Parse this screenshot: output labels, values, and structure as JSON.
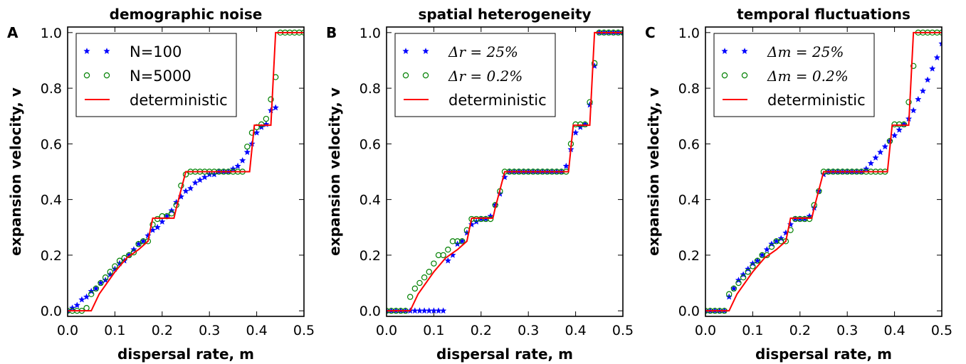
{
  "chart_data": [
    {
      "type": "scatter",
      "panel_letter": "A",
      "title": "demographic noise",
      "xlabel": "dispersal rate, m",
      "ylabel": "expansion velocity, v",
      "xlim": [
        0.0,
        0.5
      ],
      "ylim": [
        -0.02,
        1.02
      ],
      "xticks": [
        "0.0",
        "0.1",
        "0.2",
        "0.3",
        "0.4",
        "0.5"
      ],
      "yticks": [
        "0.0",
        "0.2",
        "0.4",
        "0.6",
        "0.8",
        "1.0"
      ],
      "legend_position": "top-left",
      "colors": {
        "stars": "#0000ff",
        "circles": "#008000",
        "line": "#ff0000"
      },
      "series": [
        {
          "name": "N=100",
          "marker": "star",
          "x": [
            0.0,
            0.01,
            0.02,
            0.03,
            0.04,
            0.05,
            0.06,
            0.07,
            0.08,
            0.09,
            0.1,
            0.11,
            0.12,
            0.13,
            0.14,
            0.15,
            0.16,
            0.17,
            0.18,
            0.19,
            0.2,
            0.21,
            0.22,
            0.23,
            0.24,
            0.25,
            0.26,
            0.27,
            0.28,
            0.29,
            0.3,
            0.31,
            0.32,
            0.33,
            0.34,
            0.35,
            0.36,
            0.37,
            0.38,
            0.39,
            0.4,
            0.41,
            0.42,
            0.43,
            0.44
          ],
          "y": [
            0.0,
            0.01,
            0.02,
            0.04,
            0.05,
            0.07,
            0.08,
            0.1,
            0.11,
            0.13,
            0.15,
            0.17,
            0.18,
            0.2,
            0.22,
            0.24,
            0.25,
            0.27,
            0.29,
            0.3,
            0.32,
            0.34,
            0.36,
            0.39,
            0.41,
            0.43,
            0.44,
            0.46,
            0.47,
            0.48,
            0.49,
            0.49,
            0.5,
            0.5,
            0.5,
            0.51,
            0.52,
            0.54,
            0.57,
            0.6,
            0.64,
            0.66,
            0.67,
            0.72,
            0.73
          ]
        },
        {
          "name": "N=5000",
          "marker": "circle",
          "x": [
            0.0,
            0.01,
            0.02,
            0.03,
            0.04,
            0.05,
            0.06,
            0.07,
            0.08,
            0.09,
            0.1,
            0.11,
            0.12,
            0.13,
            0.14,
            0.15,
            0.16,
            0.17,
            0.18,
            0.19,
            0.2,
            0.21,
            0.22,
            0.23,
            0.24,
            0.25,
            0.26,
            0.27,
            0.28,
            0.29,
            0.3,
            0.31,
            0.32,
            0.33,
            0.34,
            0.35,
            0.36,
            0.37,
            0.38,
            0.39,
            0.4,
            0.41,
            0.42,
            0.43,
            0.44,
            0.45,
            0.46,
            0.47,
            0.48,
            0.49,
            0.5
          ],
          "y": [
            0.0,
            0.0,
            0.0,
            0.0,
            0.01,
            0.06,
            0.08,
            0.1,
            0.12,
            0.14,
            0.16,
            0.18,
            0.19,
            0.2,
            0.21,
            0.24,
            0.25,
            0.25,
            0.31,
            0.33,
            0.34,
            0.34,
            0.35,
            0.38,
            0.45,
            0.49,
            0.5,
            0.5,
            0.5,
            0.5,
            0.5,
            0.5,
            0.5,
            0.5,
            0.5,
            0.5,
            0.5,
            0.5,
            0.59,
            0.64,
            0.66,
            0.67,
            0.69,
            0.76,
            0.84,
            1.0,
            1.0,
            1.0,
            1.0,
            1.0,
            1.0
          ]
        },
        {
          "name": "deterministic",
          "marker": "line",
          "x": [
            0.0,
            0.05,
            0.0667,
            0.1,
            0.125,
            0.15,
            0.17,
            0.18,
            0.225,
            0.23,
            0.25,
            0.385,
            0.395,
            0.43,
            0.44,
            0.5
          ],
          "y": [
            0.0,
            0.0,
            0.06,
            0.14,
            0.19,
            0.22,
            0.25,
            0.333,
            0.333,
            0.37,
            0.5,
            0.5,
            0.667,
            0.667,
            1.0,
            1.0
          ]
        }
      ]
    },
    {
      "type": "scatter",
      "panel_letter": "B",
      "title": "spatial heterogeneity",
      "xlabel": "dispersal rate, m",
      "ylabel": "expansion velocity, v",
      "xlim": [
        0.0,
        0.5
      ],
      "ylim": [
        -0.02,
        1.02
      ],
      "xticks": [
        "0.0",
        "0.1",
        "0.2",
        "0.3",
        "0.4",
        "0.5"
      ],
      "yticks": [
        "0.0",
        "0.2",
        "0.4",
        "0.6",
        "0.8",
        "1.0"
      ],
      "legend_position": "top-left",
      "colors": {
        "stars": "#0000ff",
        "circles": "#008000",
        "line": "#ff0000"
      },
      "series": [
        {
          "name": "Δr = 25%",
          "marker": "star",
          "x": [
            0.0,
            0.01,
            0.02,
            0.03,
            0.04,
            0.05,
            0.06,
            0.07,
            0.08,
            0.09,
            0.1,
            0.11,
            0.12,
            0.13,
            0.14,
            0.15,
            0.16,
            0.17,
            0.18,
            0.19,
            0.2,
            0.21,
            0.22,
            0.23,
            0.24,
            0.25,
            0.26,
            0.27,
            0.28,
            0.29,
            0.3,
            0.31,
            0.32,
            0.33,
            0.34,
            0.35,
            0.36,
            0.37,
            0.38,
            0.39,
            0.4,
            0.41,
            0.42,
            0.43,
            0.44,
            0.45,
            0.46,
            0.47,
            0.48,
            0.49,
            0.5
          ],
          "y": [
            0.0,
            0.0,
            0.0,
            0.0,
            0.0,
            0.0,
            0.0,
            0.0,
            0.0,
            0.0,
            0.0,
            0.0,
            0.0,
            0.18,
            0.2,
            0.24,
            0.25,
            0.28,
            0.31,
            0.32,
            0.33,
            0.33,
            0.34,
            0.38,
            0.42,
            0.48,
            0.5,
            0.5,
            0.5,
            0.5,
            0.5,
            0.5,
            0.5,
            0.5,
            0.5,
            0.5,
            0.5,
            0.5,
            0.52,
            0.58,
            0.64,
            0.66,
            0.67,
            0.74,
            0.88,
            1.0,
            1.0,
            1.0,
            1.0,
            1.0,
            1.0
          ]
        },
        {
          "name": "Δr = 0.2%",
          "marker": "circle",
          "x": [
            0.0,
            0.01,
            0.02,
            0.03,
            0.04,
            0.05,
            0.06,
            0.07,
            0.08,
            0.09,
            0.1,
            0.11,
            0.12,
            0.13,
            0.14,
            0.15,
            0.16,
            0.17,
            0.18,
            0.19,
            0.2,
            0.21,
            0.22,
            0.23,
            0.24,
            0.25,
            0.26,
            0.27,
            0.28,
            0.29,
            0.3,
            0.31,
            0.32,
            0.33,
            0.34,
            0.35,
            0.36,
            0.37,
            0.38,
            0.39,
            0.4,
            0.41,
            0.42,
            0.43,
            0.44,
            0.45,
            0.46,
            0.47,
            0.48,
            0.49,
            0.5
          ],
          "y": [
            0.0,
            0.0,
            0.0,
            0.0,
            0.0,
            0.05,
            0.08,
            0.1,
            0.12,
            0.14,
            0.17,
            0.2,
            0.2,
            0.22,
            0.25,
            0.25,
            0.25,
            0.29,
            0.33,
            0.33,
            0.33,
            0.33,
            0.33,
            0.38,
            0.43,
            0.5,
            0.5,
            0.5,
            0.5,
            0.5,
            0.5,
            0.5,
            0.5,
            0.5,
            0.5,
            0.5,
            0.5,
            0.5,
            0.5,
            0.6,
            0.67,
            0.67,
            0.67,
            0.75,
            0.89,
            1.0,
            1.0,
            1.0,
            1.0,
            1.0,
            1.0
          ]
        },
        {
          "name": "deterministic",
          "marker": "line",
          "x": [
            0.0,
            0.05,
            0.0667,
            0.1,
            0.125,
            0.15,
            0.17,
            0.18,
            0.225,
            0.23,
            0.25,
            0.385,
            0.395,
            0.43,
            0.44,
            0.5
          ],
          "y": [
            0.0,
            0.0,
            0.06,
            0.14,
            0.19,
            0.22,
            0.25,
            0.333,
            0.333,
            0.37,
            0.5,
            0.5,
            0.667,
            0.667,
            1.0,
            1.0
          ]
        }
      ]
    },
    {
      "type": "scatter",
      "panel_letter": "C",
      "title": "temporal fluctuations",
      "xlabel": "dispersal rate, m",
      "ylabel": "expansion velocity, v",
      "xlim": [
        0.0,
        0.5
      ],
      "ylim": [
        -0.02,
        1.02
      ],
      "xticks": [
        "0.0",
        "0.1",
        "0.2",
        "0.3",
        "0.4",
        "0.5"
      ],
      "yticks": [
        "0.0",
        "0.2",
        "0.4",
        "0.6",
        "0.8",
        "1.0"
      ],
      "legend_position": "top-left",
      "colors": {
        "stars": "#0000ff",
        "circles": "#008000",
        "line": "#ff0000"
      },
      "series": [
        {
          "name": "Δm = 25%",
          "marker": "star",
          "x": [
            0.0,
            0.01,
            0.02,
            0.03,
            0.04,
            0.05,
            0.06,
            0.07,
            0.08,
            0.09,
            0.1,
            0.11,
            0.12,
            0.13,
            0.14,
            0.15,
            0.16,
            0.17,
            0.18,
            0.19,
            0.2,
            0.21,
            0.22,
            0.23,
            0.24,
            0.25,
            0.26,
            0.27,
            0.28,
            0.29,
            0.3,
            0.31,
            0.32,
            0.33,
            0.34,
            0.35,
            0.36,
            0.37,
            0.38,
            0.39,
            0.4,
            0.41,
            0.42,
            0.43,
            0.44,
            0.45,
            0.46,
            0.47,
            0.48,
            0.49,
            0.5
          ],
          "y": [
            0.0,
            0.0,
            0.0,
            0.0,
            0.0,
            0.05,
            0.08,
            0.11,
            0.13,
            0.15,
            0.17,
            0.18,
            0.2,
            0.22,
            0.24,
            0.25,
            0.26,
            0.28,
            0.31,
            0.33,
            0.33,
            0.33,
            0.34,
            0.37,
            0.43,
            0.49,
            0.5,
            0.5,
            0.5,
            0.5,
            0.5,
            0.5,
            0.5,
            0.5,
            0.51,
            0.53,
            0.55,
            0.57,
            0.59,
            0.61,
            0.63,
            0.65,
            0.67,
            0.69,
            0.72,
            0.76,
            0.79,
            0.83,
            0.87,
            0.91,
            0.96
          ]
        },
        {
          "name": "Δm = 0.2%",
          "marker": "circle",
          "x": [
            0.0,
            0.01,
            0.02,
            0.03,
            0.04,
            0.05,
            0.06,
            0.07,
            0.08,
            0.09,
            0.1,
            0.11,
            0.12,
            0.13,
            0.14,
            0.15,
            0.16,
            0.17,
            0.18,
            0.19,
            0.2,
            0.21,
            0.22,
            0.23,
            0.24,
            0.25,
            0.26,
            0.27,
            0.28,
            0.29,
            0.3,
            0.31,
            0.32,
            0.33,
            0.34,
            0.35,
            0.36,
            0.37,
            0.38,
            0.39,
            0.4,
            0.41,
            0.42,
            0.43,
            0.44,
            0.45,
            0.46,
            0.47,
            0.48,
            0.49,
            0.5
          ],
          "y": [
            0.0,
            0.0,
            0.0,
            0.0,
            0.0,
            0.06,
            0.08,
            0.1,
            0.12,
            0.14,
            0.16,
            0.18,
            0.2,
            0.2,
            0.23,
            0.25,
            0.25,
            0.25,
            0.29,
            0.33,
            0.33,
            0.33,
            0.33,
            0.38,
            0.43,
            0.5,
            0.5,
            0.5,
            0.5,
            0.5,
            0.5,
            0.5,
            0.5,
            0.5,
            0.5,
            0.5,
            0.5,
            0.5,
            0.5,
            0.61,
            0.67,
            0.67,
            0.67,
            0.75,
            0.88,
            1.0,
            1.0,
            1.0,
            1.0,
            1.0,
            1.0
          ]
        },
        {
          "name": "deterministic",
          "marker": "line",
          "x": [
            0.0,
            0.05,
            0.0667,
            0.1,
            0.125,
            0.15,
            0.17,
            0.18,
            0.225,
            0.23,
            0.25,
            0.385,
            0.395,
            0.43,
            0.44,
            0.5
          ],
          "y": [
            0.0,
            0.0,
            0.06,
            0.14,
            0.19,
            0.22,
            0.25,
            0.333,
            0.333,
            0.37,
            0.5,
            0.5,
            0.667,
            0.667,
            1.0,
            1.0
          ]
        }
      ]
    }
  ]
}
